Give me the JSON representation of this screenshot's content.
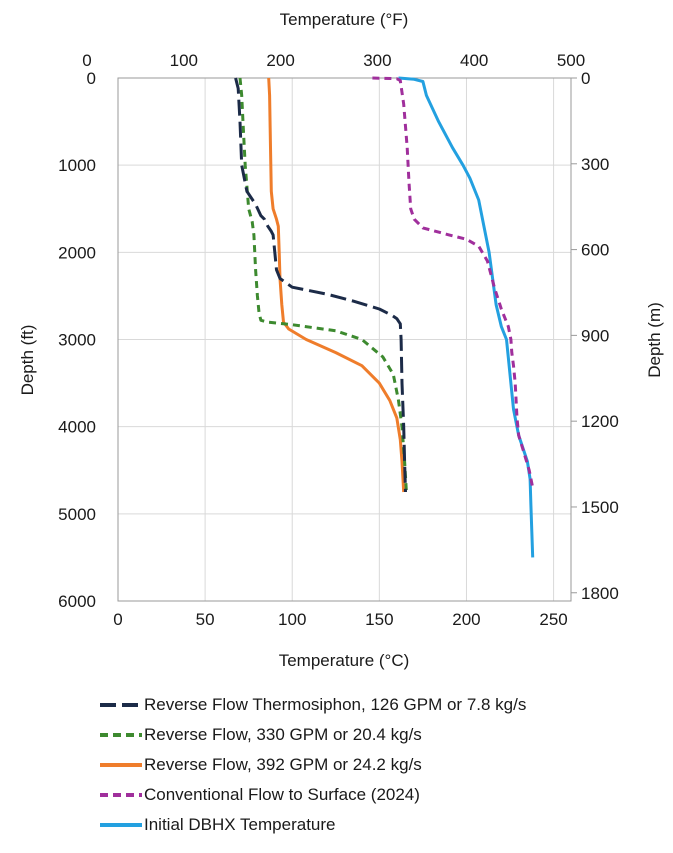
{
  "chart_data": {
    "type": "line",
    "x_axis_bottom": {
      "label": "Temperature (°C)",
      "range": [
        0,
        260
      ],
      "ticks": [
        "0",
        "50",
        "100",
        "150",
        "200",
        "250"
      ],
      "tick_values": [
        0,
        50,
        100,
        150,
        200,
        250
      ]
    },
    "x_axis_top": {
      "label": "Temperature (°F)",
      "ticks": [
        "0",
        "100",
        "200",
        "300",
        "400",
        "500"
      ],
      "tick_values": [
        0,
        100,
        200,
        300,
        400,
        500
      ]
    },
    "y_axis_left": {
      "label": "Depth (ft)",
      "range": [
        0,
        6000
      ],
      "inverted": true,
      "ticks": [
        "0",
        "1000",
        "2000",
        "3000",
        "4000",
        "5000",
        "6000"
      ],
      "tick_values": [
        0,
        1000,
        2000,
        3000,
        4000,
        5000,
        6000
      ]
    },
    "y_axis_right": {
      "label": "Depth (m)",
      "ticks": [
        "0",
        "300",
        "600",
        "900",
        "1200",
        "1500",
        "1800"
      ],
      "tick_values": [
        0,
        300,
        600,
        900,
        1200,
        1500,
        1800
      ]
    },
    "grid": true,
    "legend_position": "bottom",
    "series": [
      {
        "name": "Reverse Flow Thermosiphon, 126 GPM or 7.8 kg/s",
        "color": "#1c2b48",
        "dash": "long-dash",
        "points": [
          [
            67.5,
            0
          ],
          [
            69,
            120
          ],
          [
            70,
            500
          ],
          [
            71,
            1000
          ],
          [
            74,
            1300
          ],
          [
            79,
            1450
          ],
          [
            82,
            1580
          ],
          [
            84,
            1620
          ],
          [
            86,
            1700
          ],
          [
            88,
            1760
          ],
          [
            89,
            1800
          ],
          [
            90,
            2000
          ],
          [
            91,
            2200
          ],
          [
            93,
            2300
          ],
          [
            100,
            2400
          ],
          [
            120,
            2480
          ],
          [
            135,
            2560
          ],
          [
            150,
            2650
          ],
          [
            157,
            2720
          ],
          [
            160,
            2760
          ],
          [
            161,
            2790
          ],
          [
            162,
            2820
          ],
          [
            162.5,
            3000
          ],
          [
            163,
            3500
          ],
          [
            164,
            4000
          ],
          [
            164.5,
            4400
          ],
          [
            165,
            4750
          ]
        ]
      },
      {
        "name": "Reverse Flow, 330 GPM or 20.4 kg/s",
        "color": "#3d8a2f",
        "dash": "short-dash",
        "points": [
          [
            70,
            0
          ],
          [
            71,
            200
          ],
          [
            72,
            600
          ],
          [
            73,
            1000
          ],
          [
            75,
            1500
          ],
          [
            77,
            1650
          ],
          [
            78,
            1800
          ],
          [
            79,
            2200
          ],
          [
            80,
            2500
          ],
          [
            81,
            2700
          ],
          [
            82,
            2780
          ],
          [
            86,
            2800
          ],
          [
            100,
            2830
          ],
          [
            125,
            2900
          ],
          [
            140,
            3000
          ],
          [
            152,
            3200
          ],
          [
            158,
            3400
          ],
          [
            161,
            3700
          ],
          [
            163,
            4000
          ],
          [
            164.5,
            4400
          ],
          [
            165.5,
            4750
          ]
        ]
      },
      {
        "name": "Reverse Flow, 392 GPM or 24.2 kg/s",
        "color": "#ef7d2b",
        "dash": "solid",
        "points": [
          [
            86.5,
            0
          ],
          [
            87,
            200
          ],
          [
            87.5,
            800
          ],
          [
            88,
            1300
          ],
          [
            89,
            1500
          ],
          [
            91,
            1620
          ],
          [
            92,
            1700
          ],
          [
            92.5,
            2000
          ],
          [
            93,
            2300
          ],
          [
            94,
            2600
          ],
          [
            95,
            2800
          ],
          [
            98,
            2880
          ],
          [
            108,
            3000
          ],
          [
            125,
            3150
          ],
          [
            140,
            3300
          ],
          [
            150,
            3500
          ],
          [
            156,
            3700
          ],
          [
            160,
            3900
          ],
          [
            162,
            4150
          ],
          [
            163,
            4400
          ],
          [
            164,
            4750
          ]
        ]
      },
      {
        "name": "Conventional Flow to Surface (2024)",
        "color": "#a02f9c",
        "dash": "short-dash",
        "points": [
          [
            146,
            0
          ],
          [
            160,
            8
          ],
          [
            162,
            30
          ],
          [
            164,
            300
          ],
          [
            166,
            800
          ],
          [
            167,
            1200
          ],
          [
            168,
            1500
          ],
          [
            170,
            1620
          ],
          [
            175,
            1720
          ],
          [
            190,
            1800
          ],
          [
            200,
            1850
          ],
          [
            207,
            1930
          ],
          [
            212,
            2100
          ],
          [
            216,
            2400
          ],
          [
            220,
            2650
          ],
          [
            224,
            2850
          ],
          [
            225.5,
            3000
          ],
          [
            226,
            3150
          ],
          [
            227,
            3300
          ],
          [
            228,
            3500
          ],
          [
            228.5,
            3700
          ],
          [
            229,
            3900
          ],
          [
            230,
            4100
          ],
          [
            233,
            4300
          ],
          [
            236,
            4500
          ],
          [
            238,
            4700
          ]
        ]
      },
      {
        "name": "Initial DBHX Temperature",
        "color": "#23a0e0",
        "dash": "solid",
        "points": [
          [
            161,
            0
          ],
          [
            170,
            15
          ],
          [
            175,
            40
          ],
          [
            177,
            200
          ],
          [
            184,
            500
          ],
          [
            192,
            800
          ],
          [
            198,
            1000
          ],
          [
            202,
            1150
          ],
          [
            207,
            1400
          ],
          [
            210,
            1700
          ],
          [
            213,
            2000
          ],
          [
            215,
            2300
          ],
          [
            217,
            2600
          ],
          [
            220,
            2850
          ],
          [
            223,
            3000
          ],
          [
            225,
            3400
          ],
          [
            227,
            3800
          ],
          [
            230,
            4100
          ],
          [
            235,
            4400
          ],
          [
            236.5,
            4600
          ],
          [
            237,
            4900
          ],
          [
            237.5,
            5200
          ],
          [
            238,
            5500
          ]
        ]
      }
    ]
  }
}
